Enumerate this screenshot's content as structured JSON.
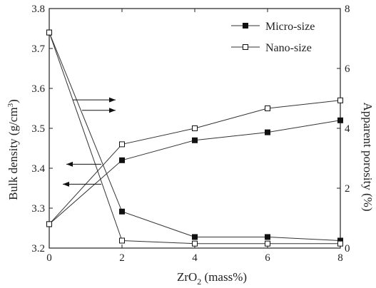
{
  "chart_data": {
    "type": "line",
    "xlabel_main": "ZrO",
    "xlabel_sub": "2",
    "xlabel_rest": " (mass%)",
    "ylabel_left": "Bulk density (g/cm",
    "ylabel_left_sup": "3",
    "ylabel_left_end": ")",
    "ylabel_right": "Apparent porosity (%)",
    "xlim": [
      0,
      8
    ],
    "ylim_left": [
      3.2,
      3.8
    ],
    "ylim_right": [
      0,
      8
    ],
    "x_ticks": [
      "0",
      "2",
      "4",
      "6",
      "8"
    ],
    "y_left_ticks": [
      "3.2",
      "3.3",
      "3.4",
      "3.5",
      "3.6",
      "3.7",
      "3.8"
    ],
    "y_right_ticks": [
      "0",
      "2",
      "4",
      "6",
      "8"
    ],
    "legend": {
      "position": "top-right",
      "entries": [
        "Micro-size",
        "Nano-size"
      ]
    },
    "grid": false,
    "x": [
      0,
      2,
      4,
      6,
      8
    ],
    "series": [
      {
        "name": "Micro-size",
        "axis": "left",
        "marker": "filled-square",
        "values": [
          3.26,
          3.42,
          3.47,
          3.49,
          3.52
        ]
      },
      {
        "name": "Nano-size",
        "axis": "left",
        "marker": "open-square",
        "values": [
          3.26,
          3.46,
          3.5,
          3.55,
          3.57
        ]
      },
      {
        "name": "Micro-size",
        "axis": "right",
        "marker": "filled-square",
        "values": [
          7.2,
          1.22,
          0.37,
          0.37,
          0.25
        ]
      },
      {
        "name": "Nano-size",
        "axis": "right",
        "marker": "open-square",
        "values": [
          7.2,
          0.25,
          0.15,
          0.15,
          0.15
        ]
      }
    ],
    "arrows": [
      {
        "direction": "right",
        "axis": "right"
      },
      {
        "direction": "right",
        "axis": "right"
      },
      {
        "direction": "left",
        "axis": "left"
      },
      {
        "direction": "left",
        "axis": "left"
      }
    ]
  }
}
